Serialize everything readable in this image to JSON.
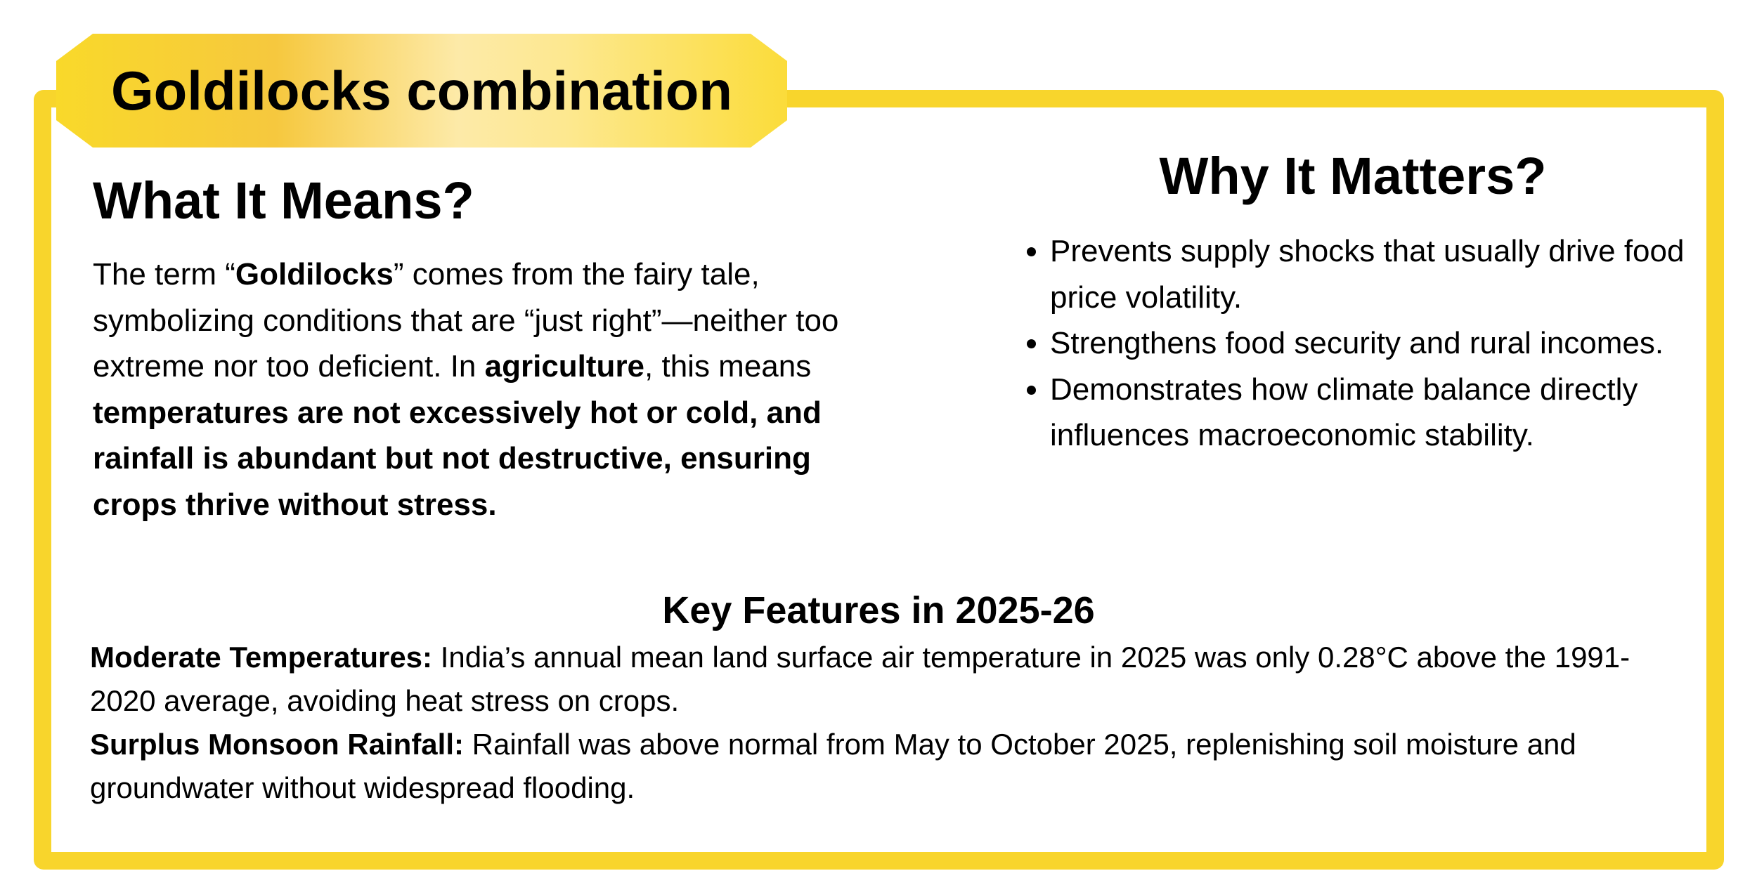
{
  "badge": {
    "title": "Goldilocks combination"
  },
  "means": {
    "title": "What It Means?",
    "p1": "The term “",
    "b1": "Goldilocks",
    "p2": "” comes from the fairy tale, symbolizing conditions that are “just right”—neither too extreme nor too deficient. In ",
    "b2": "agriculture",
    "p3": ", this means ",
    "b3": "temperatures are not excessively hot or cold, and rainfall is abundant but not destructive, ensuring crops thrive without stress."
  },
  "matters": {
    "title": "Why It Matters?",
    "items": [
      "Prevents supply shocks that usually drive food price volatility.",
      "Strengthens food security and rural incomes.",
      "Demonstrates how climate balance directly influences macroeconomic stability."
    ]
  },
  "key_features": {
    "title": "Key Features in 2025-26",
    "items": [
      {
        "label": "Moderate Temperatures:",
        "text": " India’s annual mean land surface air temperature in 2025 was only 0.28°C above the 1991-2020 average, avoiding heat stress on crops."
      },
      {
        "label": "Surplus Monsoon Rainfall:",
        "text": " Rainfall was above normal from May to October 2025, replenishing soil moisture and groundwater without widespread flooding."
      }
    ]
  },
  "colors": {
    "frame": "#f8d52c",
    "badge_light": "#fdeaa8"
  }
}
